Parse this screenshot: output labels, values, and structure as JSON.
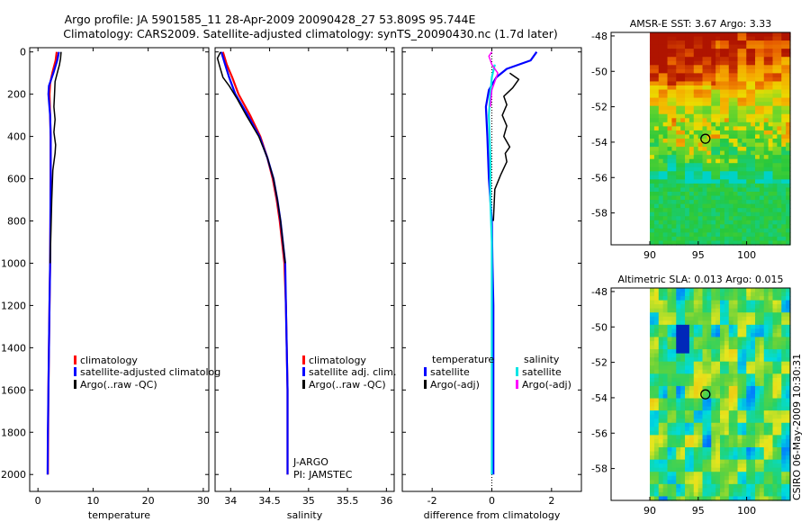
{
  "title": {
    "line1": "Argo profile: JA 5901585_11 28-Apr-2009 20090428_27 53.809S 95.744E",
    "line2": "Climatology: CARS2009. Satellite-adjusted climatology: synTS_20090430.nc (1.7d later)"
  },
  "colors": {
    "climatology": "#ff0000",
    "satellite": "#0000ff",
    "argo": "#000000",
    "sal_satellite": "#00e5e5",
    "sal_argo": "#ff00ff"
  },
  "depth_ticks": [
    "0",
    "200",
    "400",
    "600",
    "800",
    "1000",
    "1200",
    "1400",
    "1600",
    "1800",
    "2000"
  ],
  "chart_data": [
    {
      "type": "line",
      "id": "temperature",
      "xlabel": "temperature",
      "xlim": [
        -1.5,
        31
      ],
      "ylim": [
        2080,
        -20
      ],
      "xticks": [
        "0",
        "10",
        "20",
        "30"
      ],
      "xtick_values": [
        0,
        10,
        20,
        30
      ],
      "legend": [
        "climatology",
        "satellite-adjusted climatolog",
        "Argo(..raw -QC)"
      ],
      "series": [
        {
          "name": "climatology",
          "color": "climatology",
          "width": 2.2,
          "points": [
            [
              3.4,
              0
            ],
            [
              3.2,
              40
            ],
            [
              2.6,
              100
            ],
            [
              2.2,
              150
            ],
            [
              2.1,
              200
            ],
            [
              2.2,
              300
            ],
            [
              2.3,
              400
            ],
            [
              2.3,
              500
            ],
            [
              2.3,
              600
            ],
            [
              2.25,
              800
            ],
            [
              2.2,
              1000
            ],
            [
              2.1,
              1200
            ],
            [
              2.0,
              1400
            ],
            [
              1.9,
              1600
            ],
            [
              1.85,
              1800
            ],
            [
              1.8,
              2000
            ]
          ]
        },
        {
          "name": "satellite",
          "color": "satellite",
          "width": 2.2,
          "points": [
            [
              3.8,
              0
            ],
            [
              3.5,
              40
            ],
            [
              2.8,
              100
            ],
            [
              2.0,
              160
            ],
            [
              1.9,
              200
            ],
            [
              2.2,
              300
            ],
            [
              2.3,
              400
            ],
            [
              2.3,
              500
            ],
            [
              2.3,
              600
            ],
            [
              2.25,
              800
            ],
            [
              2.2,
              1000
            ],
            [
              2.1,
              1200
            ],
            [
              2.0,
              1400
            ],
            [
              1.9,
              1600
            ],
            [
              1.8,
              1800
            ],
            [
              1.75,
              2000
            ]
          ]
        },
        {
          "name": "Argo",
          "color": "argo",
          "width": 1.5,
          "points": [
            [
              4.2,
              0
            ],
            [
              4.1,
              30
            ],
            [
              3.9,
              60
            ],
            [
              3.5,
              100
            ],
            [
              3.1,
              140
            ],
            [
              3.0,
              200
            ],
            [
              2.9,
              260
            ],
            [
              3.1,
              320
            ],
            [
              2.9,
              380
            ],
            [
              3.2,
              440
            ],
            [
              3.1,
              480
            ],
            [
              2.7,
              560
            ],
            [
              2.5,
              700
            ],
            [
              2.3,
              900
            ],
            [
              2.2,
              1000
            ]
          ]
        }
      ]
    },
    {
      "type": "line",
      "id": "salinity",
      "xlabel": "salinity",
      "xlim": [
        33.8,
        36.1
      ],
      "ylim": [
        2080,
        -20
      ],
      "xticks": [
        "34",
        "34.5",
        "35",
        "35.5",
        "36"
      ],
      "xtick_values": [
        34,
        34.5,
        35,
        35.5,
        36
      ],
      "legend": [
        "climatology",
        "satellite adj. clim.",
        "Argo(..raw -QC)"
      ],
      "annotation": [
        "J-ARGO",
        "PI: JAMSTEC"
      ],
      "series": [
        {
          "name": "climatology",
          "color": "climatology",
          "width": 2.2,
          "points": [
            [
              33.9,
              0
            ],
            [
              33.95,
              60
            ],
            [
              34.02,
              120
            ],
            [
              34.1,
              200
            ],
            [
              34.25,
              300
            ],
            [
              34.38,
              400
            ],
            [
              34.47,
              500
            ],
            [
              34.54,
              600
            ],
            [
              34.59,
              700
            ],
            [
              34.63,
              800
            ],
            [
              34.66,
              900
            ],
            [
              34.69,
              1000
            ],
            [
              34.71,
              1200
            ],
            [
              34.72,
              1400
            ],
            [
              34.73,
              1600
            ],
            [
              34.73,
              1800
            ],
            [
              34.73,
              2000
            ]
          ]
        },
        {
          "name": "satellite",
          "color": "satellite",
          "width": 2.2,
          "points": [
            [
              33.88,
              0
            ],
            [
              33.93,
              60
            ],
            [
              33.98,
              120
            ],
            [
              34.06,
              200
            ],
            [
              34.22,
              300
            ],
            [
              34.37,
              400
            ],
            [
              34.47,
              500
            ],
            [
              34.55,
              600
            ],
            [
              34.6,
              700
            ],
            [
              34.64,
              800
            ],
            [
              34.67,
              900
            ],
            [
              34.7,
              1000
            ],
            [
              34.71,
              1200
            ],
            [
              34.72,
              1400
            ],
            [
              34.73,
              1600
            ],
            [
              34.73,
              1800
            ],
            [
              34.73,
              2000
            ]
          ]
        },
        {
          "name": "Argo",
          "color": "argo",
          "width": 1.5,
          "points": [
            [
              33.87,
              0
            ],
            [
              33.83,
              30
            ],
            [
              33.86,
              70
            ],
            [
              33.9,
              120
            ],
            [
              33.98,
              160
            ],
            [
              34.08,
              220
            ],
            [
              34.2,
              300
            ],
            [
              34.36,
              400
            ],
            [
              34.47,
              500
            ],
            [
              34.55,
              600
            ],
            [
              34.6,
              700
            ],
            [
              34.64,
              800
            ],
            [
              34.67,
              900
            ],
            [
              34.7,
              1000
            ]
          ]
        }
      ]
    },
    {
      "type": "line",
      "id": "difference",
      "xlabel": "difference from climatology",
      "xlim": [
        -3,
        3
      ],
      "ylim": [
        2080,
        -20
      ],
      "xticks": [
        "-2",
        "0",
        "2"
      ],
      "xtick_values": [
        -2,
        0,
        2
      ],
      "legend_headers": [
        "temperature",
        "salinity"
      ],
      "legend": [
        "satellite",
        "Argo(-adj)",
        "satellite",
        "Argo(-adj)"
      ],
      "series": [
        {
          "name": "temperature satellite",
          "color": "satellite",
          "width": 2.2,
          "points": [
            [
              1.5,
              0
            ],
            [
              1.3,
              40
            ],
            [
              0.5,
              80
            ],
            [
              0.15,
              120
            ],
            [
              -0.1,
              180
            ],
            [
              -0.2,
              260
            ],
            [
              -0.15,
              400
            ],
            [
              -0.1,
              600
            ],
            [
              0,
              800
            ],
            [
              0.02,
              1000
            ],
            [
              0.05,
              1200
            ],
            [
              0.05,
              1400
            ],
            [
              0.05,
              1600
            ],
            [
              0.05,
              1800
            ],
            [
              0.05,
              2000
            ]
          ]
        },
        {
          "name": "temperature Argo",
          "color": "argo",
          "width": 1.5,
          "points": [
            [
              0.6,
              100
            ],
            [
              0.9,
              130
            ],
            [
              0.7,
              170
            ],
            [
              0.4,
              210
            ],
            [
              0.5,
              250
            ],
            [
              0.35,
              300
            ],
            [
              0.5,
              350
            ],
            [
              0.4,
              400
            ],
            [
              0.6,
              450
            ],
            [
              0.45,
              480
            ],
            [
              0.5,
              520
            ],
            [
              0.3,
              580
            ],
            [
              0.1,
              650
            ],
            [
              0.05,
              800
            ]
          ]
        },
        {
          "name": "salinity satellite",
          "color": "sal_satellite",
          "width": 2.2,
          "points": [
            [
              0.1,
              60
            ],
            [
              0.0,
              120
            ],
            [
              -0.05,
              200
            ],
            [
              -0.1,
              300
            ],
            [
              -0.05,
              500
            ],
            [
              -0.05,
              700
            ],
            [
              0.0,
              900
            ],
            [
              0.0,
              1200
            ],
            [
              0.0,
              1500
            ],
            [
              0.0,
              1800
            ],
            [
              0.0,
              2000
            ]
          ]
        },
        {
          "name": "salinity Argo",
          "color": "sal_argo",
          "width": 1.5,
          "points": [
            [
              0.0,
              0
            ],
            [
              -0.1,
              20
            ],
            [
              0.0,
              60
            ],
            [
              0.2,
              100
            ],
            [
              0.1,
              140
            ],
            [
              0.0,
              180
            ],
            [
              -0.05,
              260
            ]
          ]
        }
      ]
    },
    {
      "type": "heatmap",
      "id": "sst_map",
      "title": "AMSR-E SST: 3.67 Argo: 3.33",
      "xticks": [
        "90",
        "95",
        "100"
      ],
      "xtick_values": [
        90,
        95,
        100
      ],
      "yticks": [
        "-48",
        "-50",
        "-52",
        "-54",
        "-56",
        "-58"
      ],
      "ytick_values": [
        -48,
        -50,
        -52,
        -54,
        -56,
        -58
      ],
      "xlim": [
        86,
        104.5
      ],
      "ylim": [
        -59.8,
        -47.8
      ],
      "data_extent": {
        "lon": [
          90,
          104.5
        ],
        "lat": [
          -59.8,
          -47.8
        ]
      },
      "marker": {
        "lon": 95.744,
        "lat": -53.809
      }
    },
    {
      "type": "heatmap",
      "id": "sla_map",
      "title": "Altimetric SLA: 0.013 Argo: 0.015",
      "xticks": [
        "90",
        "95",
        "100"
      ],
      "xtick_values": [
        90,
        95,
        100
      ],
      "yticks": [
        "-48",
        "-50",
        "-52",
        "-54",
        "-56",
        "-58"
      ],
      "ytick_values": [
        -48,
        -50,
        -52,
        -54,
        -56,
        -58
      ],
      "xlim": [
        86,
        104.5
      ],
      "ylim": [
        -59.8,
        -47.8
      ],
      "data_extent": {
        "lon": [
          90,
          104.5
        ],
        "lat": [
          -59.8,
          -47.8
        ]
      },
      "marker": {
        "lon": 95.744,
        "lat": -53.809
      }
    }
  ],
  "footer": "CSIRO 06-May-2009 10:30:31"
}
